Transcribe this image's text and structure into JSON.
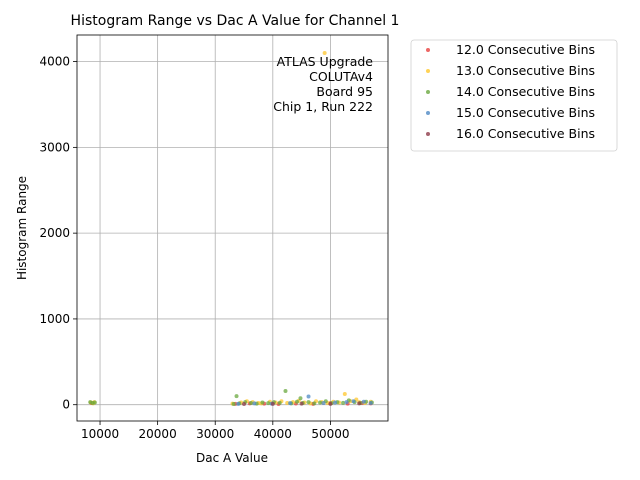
{
  "chart_data": {
    "type": "scatter",
    "title": "Histogram Range vs Dac A Value for Channel 1",
    "xlabel": "Dac A Value",
    "ylabel": "Histogram Range",
    "xlim": [
      6000,
      60000
    ],
    "ylim": [
      -190,
      4310
    ],
    "xticks": [
      10000,
      20000,
      30000,
      40000,
      50000
    ],
    "yticks": [
      0,
      1000,
      2000,
      3000,
      4000
    ],
    "grid": true,
    "legend_position": "outside-right",
    "annotation": [
      "ATLAS Upgrade",
      "COLUTAv4",
      "Board 95",
      "Chip 1, Run 222"
    ],
    "series": [
      {
        "name": "12.0 Consecutive Bins",
        "color": "#e8413f",
        "points": [
          [
            8500,
            20
          ],
          [
            33500,
            10
          ],
          [
            36000,
            15
          ],
          [
            38500,
            12
          ],
          [
            41000,
            8
          ],
          [
            44000,
            14
          ],
          [
            47000,
            10
          ],
          [
            50000,
            18
          ],
          [
            53000,
            12
          ],
          [
            55500,
            20
          ],
          [
            57000,
            15
          ]
        ]
      },
      {
        "name": "13.0 Consecutive Bins",
        "color": "#ffc72c",
        "points": [
          [
            8400,
            25
          ],
          [
            8800,
            15
          ],
          [
            9000,
            30
          ],
          [
            33000,
            12
          ],
          [
            34500,
            25
          ],
          [
            35500,
            40
          ],
          [
            36500,
            30
          ],
          [
            37500,
            20
          ],
          [
            38000,
            15
          ],
          [
            39500,
            35
          ],
          [
            40500,
            25
          ],
          [
            41500,
            40
          ],
          [
            42500,
            20
          ],
          [
            43500,
            30
          ],
          [
            44500,
            45
          ],
          [
            45500,
            25
          ],
          [
            46500,
            15
          ],
          [
            47500,
            40
          ],
          [
            48500,
            30
          ],
          [
            49000,
            4100
          ],
          [
            49500,
            20
          ],
          [
            50500,
            35
          ],
          [
            51500,
            25
          ],
          [
            52500,
            125
          ],
          [
            53500,
            40
          ],
          [
            54500,
            60
          ],
          [
            55000,
            30
          ],
          [
            56000,
            20
          ],
          [
            57000,
            35
          ]
        ]
      },
      {
        "name": "14.0 Consecutive Bins",
        "color": "#6aa83f",
        "points": [
          [
            8300,
            30
          ],
          [
            8700,
            20
          ],
          [
            9100,
            25
          ],
          [
            33200,
            8
          ],
          [
            33700,
            100
          ],
          [
            34200,
            15
          ],
          [
            35200,
            30
          ],
          [
            36200,
            20
          ],
          [
            37200,
            12
          ],
          [
            38200,
            25
          ],
          [
            39200,
            18
          ],
          [
            40200,
            30
          ],
          [
            41200,
            22
          ],
          [
            42200,
            160
          ],
          [
            43200,
            15
          ],
          [
            44200,
            35
          ],
          [
            44800,
            75
          ],
          [
            45200,
            20
          ],
          [
            46200,
            30
          ],
          [
            47200,
            15
          ],
          [
            48200,
            25
          ],
          [
            49200,
            40
          ],
          [
            50200,
            18
          ],
          [
            51200,
            30
          ],
          [
            52200,
            22
          ],
          [
            53200,
            50
          ],
          [
            54200,
            30
          ],
          [
            55200,
            20
          ],
          [
            56200,
            35
          ],
          [
            57200,
            25
          ]
        ]
      },
      {
        "name": "15.0 Consecutive Bins",
        "color": "#4f8ac4",
        "points": [
          [
            34000,
            10
          ],
          [
            36800,
            15
          ],
          [
            39800,
            12
          ],
          [
            43000,
            18
          ],
          [
            46200,
            95
          ],
          [
            48800,
            20
          ],
          [
            50800,
            25
          ],
          [
            52800,
            30
          ],
          [
            54000,
            40
          ],
          [
            55800,
            35
          ],
          [
            57000,
            20
          ]
        ]
      },
      {
        "name": "16.0 Consecutive Bins",
        "color": "#8e3b4a",
        "points": [
          [
            35000,
            8
          ],
          [
            40000,
            10
          ],
          [
            45000,
            12
          ],
          [
            50000,
            10
          ],
          [
            55000,
            15
          ]
        ]
      }
    ]
  }
}
